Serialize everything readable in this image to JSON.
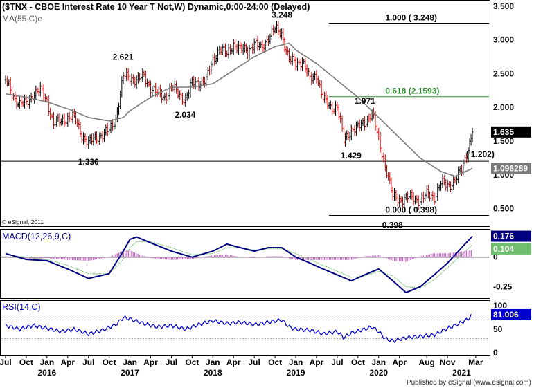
{
  "chart_data": {
    "type": "line",
    "title": "($TNX - CBOE Interest Rate 10 Year T Not,W) Dynamic,0:00-24:00 (Delayed)",
    "copyright": "© eSignal, 2011",
    "footer": "Published by eSignal (www.esignal.com)",
    "price_panel": {
      "ylim": [
        0.25,
        3.55
      ],
      "ticks": [
        "3.500",
        "3.000",
        "2.500",
        "2.000",
        "1.500",
        "1.000",
        "0.500"
      ],
      "tick_values": [
        3.5,
        3.0,
        2.5,
        2.0,
        1.5,
        1.0,
        0.5
      ],
      "ma_label": "MA(55,C)e",
      "last_price": "1.635",
      "last_price_value": 1.635,
      "ma_value": "1.096289",
      "ma_value_num": 1.096289,
      "colors": {
        "up": "#000000",
        "down": "#cc0000",
        "ma": "#7a7a7a",
        "fib": "#2e8b2e",
        "label_bg": "#000000"
      },
      "fib_levels": [
        {
          "value": 3.248,
          "label": "1.000 ( 3.248)",
          "color": "#000000"
        },
        {
          "value": 2.1593,
          "label": "0.618 (2.1593)",
          "color": "#2e8b2e"
        },
        {
          "value": 0.398,
          "label": "0.000 ( 0.398)",
          "color": "#000000"
        }
      ],
      "horizontal_line": {
        "value": 1.202,
        "label": "( 1.202)"
      },
      "annotations": [
        {
          "text": "3.248",
          "date": "2018-11",
          "value": 3.248
        },
        {
          "text": "2.621",
          "date": "2016-12",
          "value": 2.621
        },
        {
          "text": "2.034",
          "date": "2017-09",
          "value": 2.034
        },
        {
          "text": "1.336",
          "date": "2016-07",
          "value": 1.336
        },
        {
          "text": "1.971",
          "date": "2019-11",
          "value": 1.971
        },
        {
          "text": "1.429",
          "date": "2019-09",
          "value": 1.429
        },
        {
          "text": "0.398",
          "date": "2020-03",
          "value": 0.398
        }
      ],
      "close": [
        [
          2015.5,
          2.4
        ],
        [
          2015.58,
          2.2
        ],
        [
          2015.67,
          2.05
        ],
        [
          2015.75,
          2.05
        ],
        [
          2015.83,
          2.2
        ],
        [
          2015.92,
          2.25
        ],
        [
          2016.0,
          2.1
        ],
        [
          2016.08,
          1.75
        ],
        [
          2016.17,
          1.8
        ],
        [
          2016.25,
          1.85
        ],
        [
          2016.33,
          1.85
        ],
        [
          2016.42,
          1.6
        ],
        [
          2016.5,
          1.46
        ],
        [
          2016.58,
          1.55
        ],
        [
          2016.67,
          1.6
        ],
        [
          2016.75,
          1.65
        ],
        [
          2016.83,
          1.84
        ],
        [
          2016.92,
          2.45
        ],
        [
          2017.0,
          2.45
        ],
        [
          2017.08,
          2.4
        ],
        [
          2017.17,
          2.45
        ],
        [
          2017.25,
          2.3
        ],
        [
          2017.33,
          2.2
        ],
        [
          2017.42,
          2.15
        ],
        [
          2017.5,
          2.3
        ],
        [
          2017.58,
          2.2
        ],
        [
          2017.67,
          2.12
        ],
        [
          2017.75,
          2.35
        ],
        [
          2017.83,
          2.38
        ],
        [
          2017.92,
          2.4
        ],
        [
          2018.0,
          2.7
        ],
        [
          2018.08,
          2.88
        ],
        [
          2018.17,
          2.78
        ],
        [
          2018.25,
          2.95
        ],
        [
          2018.33,
          2.85
        ],
        [
          2018.42,
          2.85
        ],
        [
          2018.5,
          2.95
        ],
        [
          2018.58,
          2.86
        ],
        [
          2018.67,
          3.05
        ],
        [
          2018.75,
          3.15
        ],
        [
          2018.83,
          3.1
        ],
        [
          2018.92,
          2.7
        ],
        [
          2019.0,
          2.65
        ],
        [
          2019.08,
          2.7
        ],
        [
          2019.17,
          2.4
        ],
        [
          2019.25,
          2.5
        ],
        [
          2019.33,
          2.12
        ],
        [
          2019.42,
          2.0
        ],
        [
          2019.5,
          2.02
        ],
        [
          2019.58,
          1.5
        ],
        [
          2019.67,
          1.68
        ],
        [
          2019.75,
          1.69
        ],
        [
          2019.83,
          1.78
        ],
        [
          2019.92,
          1.92
        ],
        [
          2020.0,
          1.51
        ],
        [
          2020.08,
          1.15
        ],
        [
          2020.17,
          0.67
        ],
        [
          2020.25,
          0.64
        ],
        [
          2020.33,
          0.65
        ],
        [
          2020.42,
          0.66
        ],
        [
          2020.5,
          0.62
        ],
        [
          2020.58,
          0.7
        ],
        [
          2020.67,
          0.68
        ],
        [
          2020.75,
          0.87
        ],
        [
          2020.83,
          0.84
        ],
        [
          2020.92,
          0.92
        ],
        [
          2021.0,
          1.07
        ],
        [
          2021.08,
          1.4
        ],
        [
          2021.13,
          1.635
        ]
      ],
      "ma55": [
        [
          2015.5,
          2.2
        ],
        [
          2015.75,
          2.15
        ],
        [
          2016.0,
          2.08
        ],
        [
          2016.25,
          1.98
        ],
        [
          2016.5,
          1.85
        ],
        [
          2016.75,
          1.8
        ],
        [
          2016.92,
          1.85
        ],
        [
          2017.0,
          1.95
        ],
        [
          2017.25,
          2.15
        ],
        [
          2017.5,
          2.3
        ],
        [
          2017.75,
          2.3
        ],
        [
          2018.0,
          2.35
        ],
        [
          2018.25,
          2.55
        ],
        [
          2018.5,
          2.75
        ],
        [
          2018.75,
          2.9
        ],
        [
          2018.92,
          2.95
        ],
        [
          2019.0,
          2.85
        ],
        [
          2019.25,
          2.65
        ],
        [
          2019.5,
          2.4
        ],
        [
          2019.75,
          2.15
        ],
        [
          2020.0,
          1.85
        ],
        [
          2020.25,
          1.55
        ],
        [
          2020.5,
          1.25
        ],
        [
          2020.75,
          1.05
        ],
        [
          2020.92,
          0.98
        ],
        [
          2021.13,
          1.096
        ]
      ]
    },
    "macd_panel": {
      "label": "MACD(12,26,9,C)",
      "ylim": [
        -0.34,
        0.22
      ],
      "ticks": [
        "0",
        "-0.25"
      ],
      "tick_values": [
        0,
        -0.25
      ],
      "macd_value": "0.176",
      "signal_value": "0.104",
      "colors": {
        "macd": "#000080",
        "signal": "#6fbf6f",
        "histogram": "#c060c0"
      },
      "macd": [
        [
          2015.5,
          0.03
        ],
        [
          2015.75,
          -0.02
        ],
        [
          2016.0,
          -0.03
        ],
        [
          2016.25,
          -0.1
        ],
        [
          2016.5,
          -0.18
        ],
        [
          2016.75,
          -0.14
        ],
        [
          2016.92,
          0.05
        ],
        [
          2017.0,
          0.15
        ],
        [
          2017.08,
          0.17
        ],
        [
          2017.25,
          0.12
        ],
        [
          2017.5,
          0.05
        ],
        [
          2017.75,
          0.0
        ],
        [
          2018.0,
          0.05
        ],
        [
          2018.17,
          0.11
        ],
        [
          2018.33,
          0.08
        ],
        [
          2018.5,
          0.05
        ],
        [
          2018.67,
          0.08
        ],
        [
          2018.83,
          0.08
        ],
        [
          2019.0,
          0.0
        ],
        [
          2019.17,
          -0.05
        ],
        [
          2019.33,
          -0.1
        ],
        [
          2019.5,
          -0.15
        ],
        [
          2019.67,
          -0.2
        ],
        [
          2019.83,
          -0.15
        ],
        [
          2020.0,
          -0.1
        ],
        [
          2020.17,
          -0.2
        ],
        [
          2020.33,
          -0.3
        ],
        [
          2020.5,
          -0.25
        ],
        [
          2020.67,
          -0.15
        ],
        [
          2020.83,
          -0.05
        ],
        [
          2021.0,
          0.08
        ],
        [
          2021.13,
          0.176
        ]
      ],
      "signal": [
        [
          2015.5,
          0.02
        ],
        [
          2015.75,
          0.0
        ],
        [
          2016.0,
          -0.02
        ],
        [
          2016.25,
          -0.07
        ],
        [
          2016.5,
          -0.14
        ],
        [
          2016.75,
          -0.14
        ],
        [
          2016.92,
          -0.02
        ],
        [
          2017.0,
          0.08
        ],
        [
          2017.08,
          0.13
        ],
        [
          2017.25,
          0.13
        ],
        [
          2017.5,
          0.08
        ],
        [
          2017.75,
          0.02
        ],
        [
          2018.0,
          0.03
        ],
        [
          2018.17,
          0.08
        ],
        [
          2018.33,
          0.08
        ],
        [
          2018.5,
          0.06
        ],
        [
          2018.67,
          0.07
        ],
        [
          2018.83,
          0.07
        ],
        [
          2019.0,
          0.03
        ],
        [
          2019.17,
          -0.02
        ],
        [
          2019.33,
          -0.07
        ],
        [
          2019.5,
          -0.12
        ],
        [
          2019.67,
          -0.17
        ],
        [
          2019.83,
          -0.16
        ],
        [
          2020.0,
          -0.12
        ],
        [
          2020.17,
          -0.16
        ],
        [
          2020.33,
          -0.25
        ],
        [
          2020.5,
          -0.26
        ],
        [
          2020.67,
          -0.19
        ],
        [
          2020.83,
          -0.09
        ],
        [
          2021.0,
          0.02
        ],
        [
          2021.13,
          0.104
        ]
      ]
    },
    "rsi_panel": {
      "label": "RSI(14,C)",
      "ylim": [
        0,
        100
      ],
      "ticks": [
        "100",
        "50",
        "0"
      ],
      "tick_values": [
        100,
        50,
        0
      ],
      "levels": [
        70,
        30
      ],
      "value": "81.006",
      "color": "#0000cc",
      "rsi": [
        [
          2015.5,
          58
        ],
        [
          2015.67,
          50
        ],
        [
          2015.83,
          58
        ],
        [
          2016.0,
          52
        ],
        [
          2016.17,
          45
        ],
        [
          2016.33,
          50
        ],
        [
          2016.5,
          40
        ],
        [
          2016.67,
          48
        ],
        [
          2016.83,
          60
        ],
        [
          2016.92,
          75
        ],
        [
          2017.0,
          72
        ],
        [
          2017.17,
          62
        ],
        [
          2017.33,
          55
        ],
        [
          2017.5,
          58
        ],
        [
          2017.67,
          50
        ],
        [
          2017.83,
          60
        ],
        [
          2018.0,
          68
        ],
        [
          2018.17,
          62
        ],
        [
          2018.33,
          65
        ],
        [
          2018.5,
          60
        ],
        [
          2018.67,
          65
        ],
        [
          2018.83,
          70
        ],
        [
          2018.92,
          55
        ],
        [
          2019.0,
          50
        ],
        [
          2019.17,
          48
        ],
        [
          2019.33,
          40
        ],
        [
          2019.5,
          45
        ],
        [
          2019.58,
          32
        ],
        [
          2019.67,
          42
        ],
        [
          2019.83,
          50
        ],
        [
          2019.92,
          55
        ],
        [
          2020.0,
          45
        ],
        [
          2020.08,
          30
        ],
        [
          2020.17,
          25
        ],
        [
          2020.33,
          32
        ],
        [
          2020.5,
          35
        ],
        [
          2020.67,
          38
        ],
        [
          2020.83,
          52
        ],
        [
          2020.92,
          58
        ],
        [
          2021.0,
          65
        ],
        [
          2021.08,
          72
        ],
        [
          2021.13,
          81
        ]
      ]
    },
    "x_axis": {
      "xlim": [
        2015.45,
        2021.33
      ],
      "months": [
        {
          "label": "Jul",
          "x": 2015.5
        },
        {
          "label": "Oct",
          "x": 2015.75
        },
        {
          "label": "Jan",
          "x": 2016.0
        },
        {
          "label": "Apr",
          "x": 2016.25
        },
        {
          "label": "Jul",
          "x": 2016.5
        },
        {
          "label": "Oct",
          "x": 2016.75
        },
        {
          "label": "Jan",
          "x": 2017.0
        },
        {
          "label": "Apr",
          "x": 2017.25
        },
        {
          "label": "Jul",
          "x": 2017.5
        },
        {
          "label": "Oct",
          "x": 2017.75
        },
        {
          "label": "Jan",
          "x": 2018.0
        },
        {
          "label": "Apr",
          "x": 2018.25
        },
        {
          "label": "Jul",
          "x": 2018.5
        },
        {
          "label": "Oct",
          "x": 2018.75
        },
        {
          "label": "Jan",
          "x": 2019.0
        },
        {
          "label": "Apr",
          "x": 2019.25
        },
        {
          "label": "Jul",
          "x": 2019.5
        },
        {
          "label": "Oct",
          "x": 2019.75
        },
        {
          "label": "Jan",
          "x": 2020.0
        },
        {
          "label": "Apr",
          "x": 2020.25
        },
        {
          "label": "Aug",
          "x": 2020.58
        },
        {
          "label": "Nov",
          "x": 2020.83
        },
        {
          "label": "Mar",
          "x": 2021.17
        }
      ],
      "years": [
        {
          "label": "2016",
          "x": 2016.0
        },
        {
          "label": "2017",
          "x": 2017.0
        },
        {
          "label": "2018",
          "x": 2018.0
        },
        {
          "label": "2019",
          "x": 2019.0
        },
        {
          "label": "2020",
          "x": 2020.0
        },
        {
          "label": "2021",
          "x": 2021.0
        }
      ]
    }
  }
}
